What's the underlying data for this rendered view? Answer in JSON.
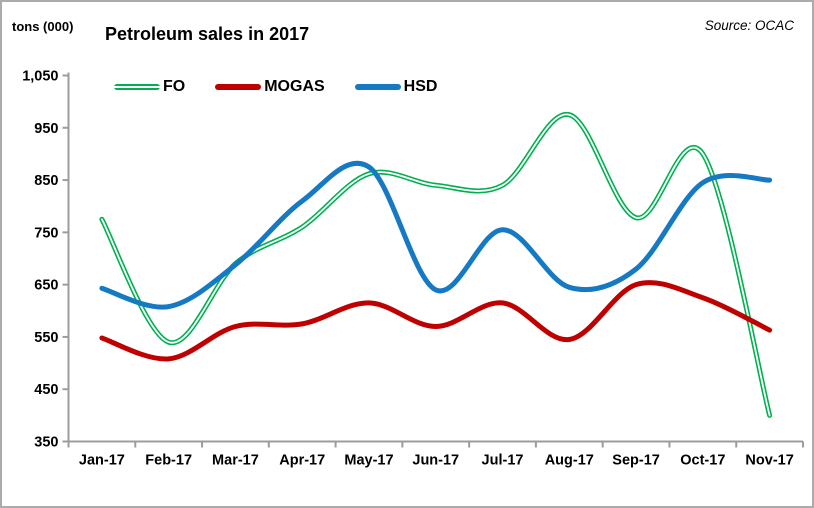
{
  "header": {
    "units_label": "tons (000)",
    "title": "Petroleum sales in 2017",
    "source": "Source: OCAC"
  },
  "chart_data": {
    "type": "line",
    "title": "Petroleum sales in 2017",
    "units_label": "tons (000)",
    "source": "Source: OCAC",
    "categories": [
      "Jan-17",
      "Feb-17",
      "Mar-17",
      "Apr-17",
      "May-17",
      "Jun-17",
      "Jul-17",
      "Aug-17",
      "Sep-17",
      "Oct-17",
      "Nov-17"
    ],
    "series": [
      {
        "name": "FO",
        "color": "#00B050",
        "double_line": true,
        "values": [
          775,
          540,
          690,
          760,
          862,
          840,
          840,
          975,
          778,
          900,
          400
        ]
      },
      {
        "name": "MOGAS",
        "color": "#C00000",
        "double_line": false,
        "values": [
          548,
          508,
          570,
          575,
          615,
          570,
          615,
          545,
          650,
          625,
          563
        ]
      },
      {
        "name": "HSD",
        "color": "#1579C4",
        "double_line": false,
        "values": [
          643,
          608,
          688,
          810,
          875,
          640,
          755,
          645,
          680,
          845,
          850
        ]
      }
    ],
    "ylim": [
      350,
      1050
    ],
    "ytick_step": 100,
    "grid": false,
    "smooth": true,
    "legend_position": "top-inside",
    "axis_color": "#9c9c9c"
  }
}
